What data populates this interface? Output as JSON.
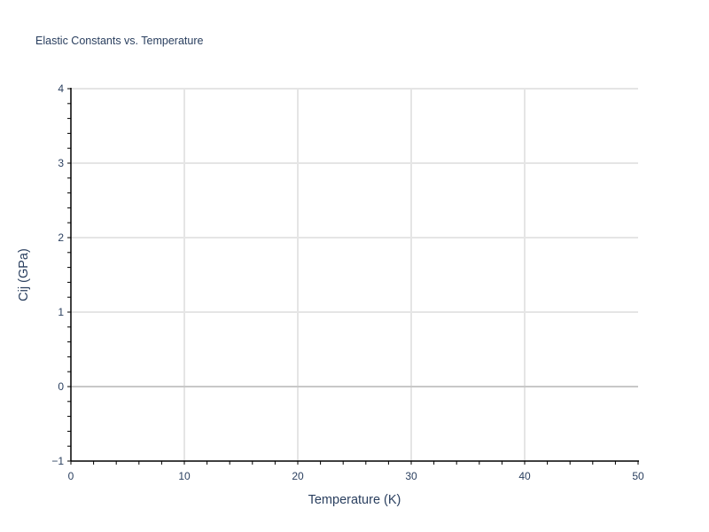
{
  "chart_data": {
    "type": "line",
    "title": "Elastic Constants vs. Temperature",
    "xlabel": "Temperature (K)",
    "ylabel": "Cij (GPa)",
    "xlim": [
      0,
      50
    ],
    "ylim": [
      -1,
      4
    ],
    "xticks": [
      "0",
      "10",
      "20",
      "30",
      "40",
      "50"
    ],
    "yticks": [
      "−1",
      "0",
      "1",
      "2",
      "3",
      "4"
    ],
    "grid": true,
    "series": []
  },
  "colors": {
    "text": "#2a3f5f",
    "grid": "#e5e5e5",
    "zeroline": "#c8c8c8",
    "axis": "#000000"
  }
}
